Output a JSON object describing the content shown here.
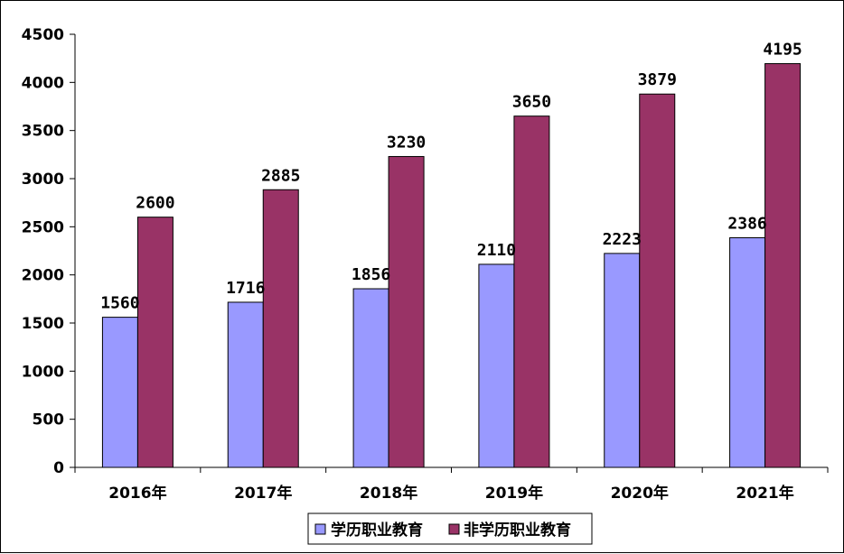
{
  "chart_data": {
    "type": "bar",
    "categories": [
      "2016年",
      "2017年",
      "2018年",
      "2019年",
      "2020年",
      "2021年"
    ],
    "series": [
      {
        "name": "学历职业教育",
        "values": [
          1560,
          1716,
          1856,
          2110,
          2223,
          2386
        ],
        "color": "#9999ff"
      },
      {
        "name": "非学历职业教育",
        "values": [
          2600,
          2885,
          3230,
          3650,
          3879,
          4195
        ],
        "color": "#993366"
      }
    ],
    "ylim": [
      0,
      4500
    ],
    "yticks": [
      0,
      500,
      1000,
      1500,
      2000,
      2500,
      3000,
      3500,
      4000,
      4500
    ],
    "grid": false,
    "legend": "bottom",
    "data_labels": true
  }
}
